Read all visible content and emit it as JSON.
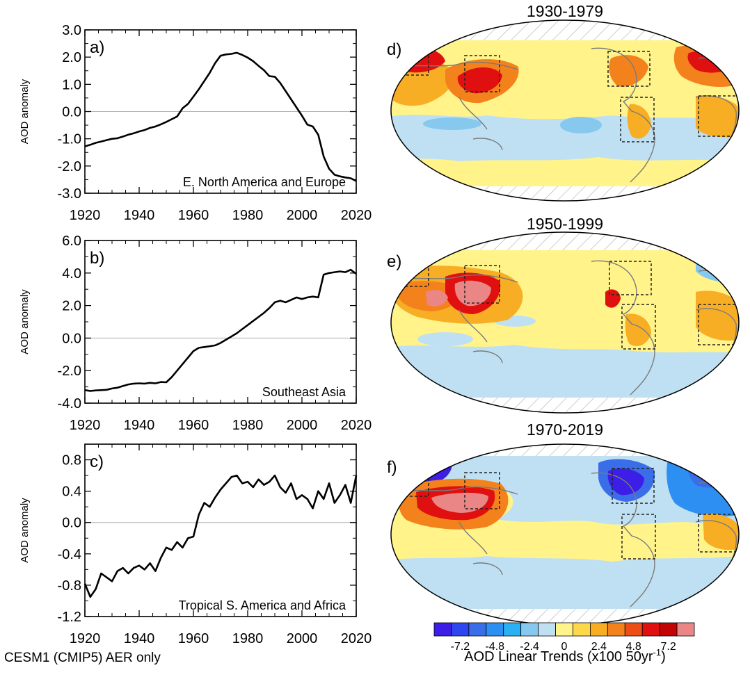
{
  "figure_caption": "CESM1 (CMIP5) AER only",
  "chart_data": [
    {
      "type": "line",
      "panel": "a)",
      "title": "E. North America and Europe",
      "xlabel": "",
      "ylabel": "AOD anomaly",
      "xlim": [
        1920,
        2020
      ],
      "ylim": [
        -3.0,
        3.0
      ],
      "xticks": [
        1920,
        1940,
        1960,
        1980,
        2000,
        2020
      ],
      "yticks": [
        -3.0,
        -2.0,
        -1.0,
        0.0,
        1.0,
        2.0,
        3.0
      ],
      "ytick_labels": [
        "-3.0",
        "-2.0",
        "-1.0",
        "0.0",
        "1.0",
        "2.0",
        "3.0"
      ],
      "x": [
        1920,
        1922,
        1924,
        1926,
        1928,
        1930,
        1932,
        1934,
        1936,
        1938,
        1940,
        1942,
        1944,
        1946,
        1948,
        1950,
        1952,
        1954,
        1956,
        1958,
        1960,
        1962,
        1964,
        1966,
        1968,
        1970,
        1972,
        1974,
        1976,
        1978,
        1980,
        1982,
        1984,
        1986,
        1988,
        1990,
        1992,
        1994,
        1996,
        1998,
        2000,
        2002,
        2004,
        2006,
        2008,
        2010,
        2012,
        2014,
        2016,
        2018,
        2020
      ],
      "y": [
        -1.28,
        -1.22,
        -1.15,
        -1.1,
        -1.05,
        -1.0,
        -0.98,
        -0.92,
        -0.85,
        -0.8,
        -0.73,
        -0.68,
        -0.6,
        -0.55,
        -0.47,
        -0.38,
        -0.28,
        -0.18,
        0.12,
        0.28,
        0.55,
        0.82,
        1.12,
        1.42,
        1.78,
        2.05,
        2.1,
        2.12,
        2.16,
        2.08,
        1.98,
        1.85,
        1.68,
        1.52,
        1.3,
        1.28,
        1.05,
        0.75,
        0.45,
        0.15,
        -0.15,
        -0.48,
        -0.55,
        -0.85,
        -1.65,
        -2.1,
        -2.32,
        -2.38,
        -2.42,
        -2.45,
        -2.55
      ]
    },
    {
      "type": "line",
      "panel": "b)",
      "title": "Southeast Asia",
      "xlabel": "",
      "ylabel": "AOD anomaly",
      "xlim": [
        1920,
        2020
      ],
      "ylim": [
        -4.0,
        6.0
      ],
      "xticks": [
        1920,
        1940,
        1960,
        1980,
        2000,
        2020
      ],
      "yticks": [
        -4.0,
        -2.0,
        0.0,
        2.0,
        4.0,
        6.0
      ],
      "ytick_labels": [
        "-4.0",
        "-2.0",
        "0.0",
        "2.0",
        "4.0",
        "6.0"
      ],
      "x": [
        1920,
        1922,
        1924,
        1926,
        1928,
        1930,
        1932,
        1934,
        1936,
        1938,
        1940,
        1942,
        1944,
        1946,
        1948,
        1950,
        1952,
        1954,
        1956,
        1958,
        1960,
        1962,
        1964,
        1966,
        1968,
        1970,
        1972,
        1974,
        1976,
        1978,
        1980,
        1982,
        1984,
        1986,
        1988,
        1990,
        1992,
        1994,
        1996,
        1998,
        2000,
        2002,
        2004,
        2006,
        2008,
        2010,
        2012,
        2014,
        2016,
        2018,
        2020
      ],
      "y": [
        -3.2,
        -3.25,
        -3.22,
        -3.2,
        -3.18,
        -3.1,
        -3.05,
        -2.95,
        -2.85,
        -2.8,
        -2.78,
        -2.8,
        -2.75,
        -2.78,
        -2.7,
        -2.72,
        -2.4,
        -2.0,
        -1.6,
        -1.2,
        -0.8,
        -0.6,
        -0.55,
        -0.5,
        -0.45,
        -0.3,
        -0.1,
        0.1,
        0.3,
        0.55,
        0.8,
        1.05,
        1.3,
        1.55,
        1.85,
        2.2,
        2.3,
        2.2,
        2.35,
        2.5,
        2.4,
        2.5,
        2.55,
        2.5,
        3.9,
        4.0,
        4.05,
        4.1,
        4.05,
        4.2,
        3.95
      ]
    },
    {
      "type": "line",
      "panel": "c)",
      "title": "Tropical S. America and Africa",
      "xlabel": "",
      "ylabel": "AOD anomaly",
      "xlim": [
        1920,
        2020
      ],
      "ylim": [
        -1.2,
        1.0
      ],
      "xticks": [
        1920,
        1940,
        1960,
        1980,
        2000,
        2020
      ],
      "yticks": [
        -1.2,
        -0.8,
        -0.4,
        0.0,
        0.4,
        0.8
      ],
      "ytick_labels": [
        "-1.2",
        "-0.8",
        "-0.4",
        "0.0",
        "0.4",
        "0.8"
      ],
      "x": [
        1920,
        1922,
        1924,
        1926,
        1928,
        1930,
        1932,
        1934,
        1936,
        1938,
        1940,
        1942,
        1944,
        1946,
        1948,
        1950,
        1952,
        1954,
        1956,
        1958,
        1960,
        1962,
        1964,
        1966,
        1968,
        1970,
        1972,
        1974,
        1976,
        1978,
        1980,
        1982,
        1984,
        1986,
        1988,
        1990,
        1992,
        1994,
        1996,
        1998,
        2000,
        2002,
        2004,
        2006,
        2008,
        2010,
        2012,
        2014,
        2016,
        2018,
        2020
      ],
      "y": [
        -0.78,
        -0.95,
        -0.85,
        -0.65,
        -0.7,
        -0.75,
        -0.62,
        -0.58,
        -0.65,
        -0.58,
        -0.55,
        -0.6,
        -0.52,
        -0.62,
        -0.45,
        -0.32,
        -0.35,
        -0.25,
        -0.32,
        -0.2,
        -0.18,
        0.1,
        0.25,
        0.2,
        0.32,
        0.42,
        0.5,
        0.58,
        0.6,
        0.5,
        0.52,
        0.45,
        0.55,
        0.48,
        0.52,
        0.6,
        0.45,
        0.38,
        0.5,
        0.3,
        0.35,
        0.3,
        0.18,
        0.4,
        0.3,
        0.5,
        0.25,
        0.35,
        0.48,
        0.25,
        0.6
      ]
    },
    {
      "type": "heatmap",
      "panel": "d)",
      "title": "1930-1979",
      "description_regions": [
        "E. North America and Europe",
        "Southeast Asia",
        "Tropical S. America and Africa"
      ]
    },
    {
      "type": "heatmap",
      "panel": "e)",
      "title": "1950-1999"
    },
    {
      "type": "heatmap",
      "panel": "f)",
      "title": "1970-2019"
    },
    {
      "type": "colorbar",
      "label": "AOD Linear Trends (x100 50yr",
      "label_superscript": "-1",
      "label_suffix": ")",
      "tick_labels": [
        "-7.2",
        "-4.8",
        "-2.4",
        "0",
        "2.4",
        "4.8",
        "7.2"
      ],
      "colors": [
        "#3c1ee6",
        "#2e46f0",
        "#3a6ee8",
        "#2d8ff2",
        "#29b1f4",
        "#87c9ee",
        "#bfe0f2",
        "#fff38a",
        "#fcd84a",
        "#f8ae24",
        "#f4821c",
        "#ee4e16",
        "#e01010",
        "#c20404",
        "#ea8686"
      ]
    }
  ]
}
